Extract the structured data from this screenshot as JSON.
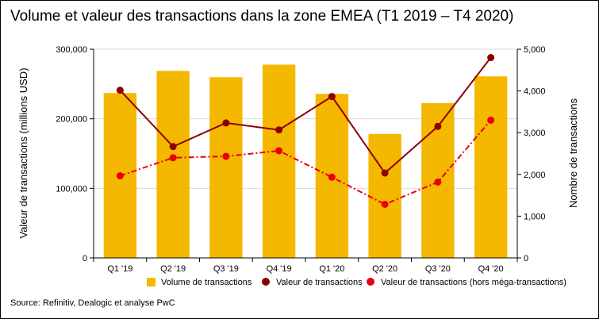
{
  "title": "Volume et valeur des transactions dans la zone EMEA (T1 2019 – T4 2020)",
  "source": "Source: Refinitiv, Dealogic et analyse PwC",
  "chart_data": {
    "type": "bar",
    "categories": [
      "Q1 '19",
      "Q2 '19",
      "Q3 '19",
      "Q4 '19",
      "Q1 '20",
      "Q2 '20",
      "Q3 '20",
      "Q4 '20"
    ],
    "ylabel": "Valeur de transactions (millions USD)",
    "y2label": "Nombre de transactions",
    "ylim": [
      0,
      300000
    ],
    "y2lim": [
      0,
      5000
    ],
    "yticks": [
      0,
      100000,
      200000,
      300000
    ],
    "yticklabels": [
      "0",
      "100,000",
      "200,000",
      "300,000"
    ],
    "y2ticks": [
      0,
      1000,
      2000,
      3000,
      4000,
      5000
    ],
    "y2ticklabels": [
      "0",
      "1,000",
      "2,000",
      "3,000",
      "4,000",
      "5,000"
    ],
    "grid": true,
    "legend_position": "bottom",
    "series": [
      {
        "name": "Volume de transactions",
        "type": "bar",
        "axis": "right",
        "color": "#F5B800",
        "values": [
          3950,
          4480,
          4330,
          4630,
          3930,
          2970,
          3710,
          4350
        ]
      },
      {
        "name": "Valeur de transactions",
        "type": "line",
        "axis": "left",
        "color": "#8B0000",
        "line_style": "solid",
        "values": [
          241000,
          160000,
          194000,
          184000,
          232000,
          122000,
          189000,
          288000
        ]
      },
      {
        "name": "Valeur de transactions (hors méga-transactions)",
        "type": "line",
        "axis": "left",
        "color": "#E8000B",
        "line_style": "dashdot",
        "values": [
          118000,
          144000,
          146000,
          154000,
          116000,
          77000,
          109000,
          198000
        ]
      }
    ]
  }
}
